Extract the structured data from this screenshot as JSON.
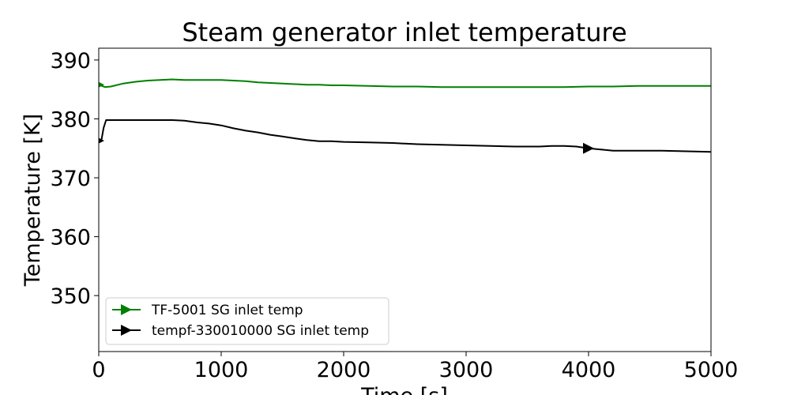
{
  "chart_data": {
    "type": "line",
    "title": "Steam generator inlet temperature",
    "xlabel": "Time [s]",
    "ylabel": "Temperature [K]",
    "xlim": [
      0,
      5000
    ],
    "ylim": [
      340.5,
      392
    ],
    "xticks": [
      0,
      1000,
      2000,
      3000,
      4000,
      5000
    ],
    "yticks": [
      350,
      360,
      370,
      380,
      390
    ],
    "grid": false,
    "legend_position": "lower-left",
    "series": [
      {
        "name": "TF-5001 SG inlet temp",
        "color": "#008000",
        "marker": "triangle-right",
        "x": [
          0,
          50,
          100,
          200,
          300,
          400,
          500,
          600,
          700,
          800,
          900,
          1000,
          1100,
          1200,
          1300,
          1400,
          1500,
          1600,
          1700,
          1800,
          1900,
          2000,
          2200,
          2400,
          2600,
          2800,
          3000,
          3200,
          3400,
          3600,
          3800,
          4000,
          4200,
          4400,
          4600,
          4800,
          5000
        ],
        "y": [
          385.8,
          385.4,
          385.5,
          386.0,
          386.3,
          386.5,
          386.6,
          386.7,
          386.6,
          386.6,
          386.6,
          386.6,
          386.5,
          386.4,
          386.2,
          386.1,
          386.0,
          385.9,
          385.8,
          385.8,
          385.7,
          385.7,
          385.6,
          385.5,
          385.5,
          385.4,
          385.4,
          385.4,
          385.4,
          385.4,
          385.4,
          385.5,
          385.5,
          385.6,
          385.6,
          385.6,
          385.6
        ]
      },
      {
        "name": "tempf-330010000 SG inlet temp",
        "color": "#000000",
        "marker": "triangle-right",
        "x": [
          0,
          20,
          40,
          60,
          100,
          200,
          400,
          600,
          700,
          800,
          900,
          1000,
          1100,
          1200,
          1300,
          1400,
          1500,
          1600,
          1700,
          1800,
          1900,
          2000,
          2200,
          2400,
          2500,
          2600,
          2800,
          3000,
          3200,
          3400,
          3600,
          3700,
          3800,
          3900,
          4000,
          4100,
          4200,
          4300,
          4400,
          4600,
          4800,
          5000
        ],
        "y": [
          376.3,
          376.2,
          378.5,
          379.8,
          379.8,
          379.8,
          379.8,
          379.8,
          379.7,
          379.4,
          379.2,
          378.9,
          378.4,
          378.0,
          377.7,
          377.3,
          377.0,
          376.7,
          376.4,
          376.2,
          376.2,
          376.1,
          376.0,
          375.9,
          375.8,
          375.7,
          375.6,
          375.5,
          375.4,
          375.3,
          375.3,
          375.4,
          375.4,
          375.3,
          375.0,
          374.8,
          374.6,
          374.6,
          374.6,
          374.6,
          374.5,
          374.4
        ]
      }
    ],
    "markers": [
      {
        "series": 0,
        "x": 0,
        "y": 385.8
      },
      {
        "series": 1,
        "x": 0,
        "y": 376.3
      },
      {
        "series": 1,
        "x": 4000,
        "y": 375.0
      }
    ]
  }
}
